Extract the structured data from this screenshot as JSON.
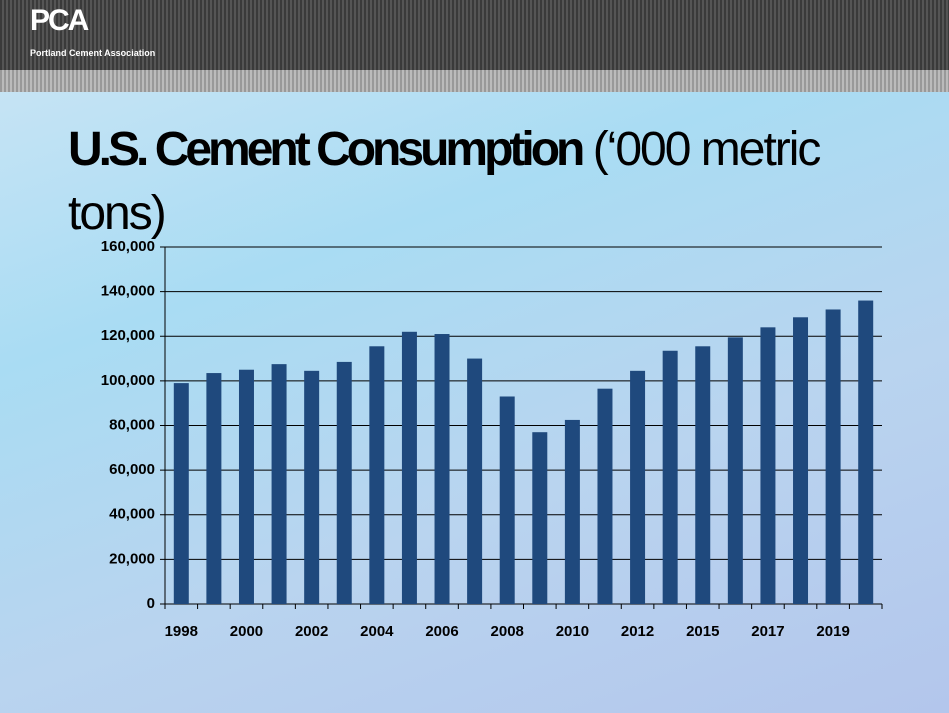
{
  "header": {
    "logo": "PCA",
    "organization": "Portland Cement Association"
  },
  "chart_data": {
    "type": "bar",
    "title": "U.S. Cement Consumption",
    "subtitle": "(‘000 metric tons)",
    "categories": [
      "1998",
      null,
      "2000",
      null,
      "2002",
      null,
      "2004",
      null,
      "2006",
      null,
      "2008",
      null,
      "2010",
      null,
      "2012",
      null,
      "2015",
      null,
      "2017",
      null,
      "2019",
      null
    ],
    "values": [
      99000,
      103500,
      105000,
      107500,
      104500,
      108500,
      115500,
      122000,
      121000,
      110000,
      93000,
      77000,
      82500,
      96500,
      104500,
      113500,
      115500,
      119500,
      124000,
      128500,
      132000,
      136000
    ],
    "color": "#1f497d",
    "ylim": [
      0,
      160000
    ],
    "yticks": [
      0,
      {
        "value": 20000,
        "label": "20,000"
      },
      {
        "value": 40000,
        "label": "40,000"
      },
      {
        "value": 60000,
        "label": "60,000"
      },
      {
        "value": 80000,
        "label": "80,000"
      },
      {
        "value": 100000,
        "label": "100,000"
      },
      {
        "value": 120000,
        "label": "120,000"
      },
      {
        "value": 140000,
        "label": "140,000"
      },
      {
        "value": 160000,
        "label": "160,000"
      }
    ],
    "grid": true
  }
}
